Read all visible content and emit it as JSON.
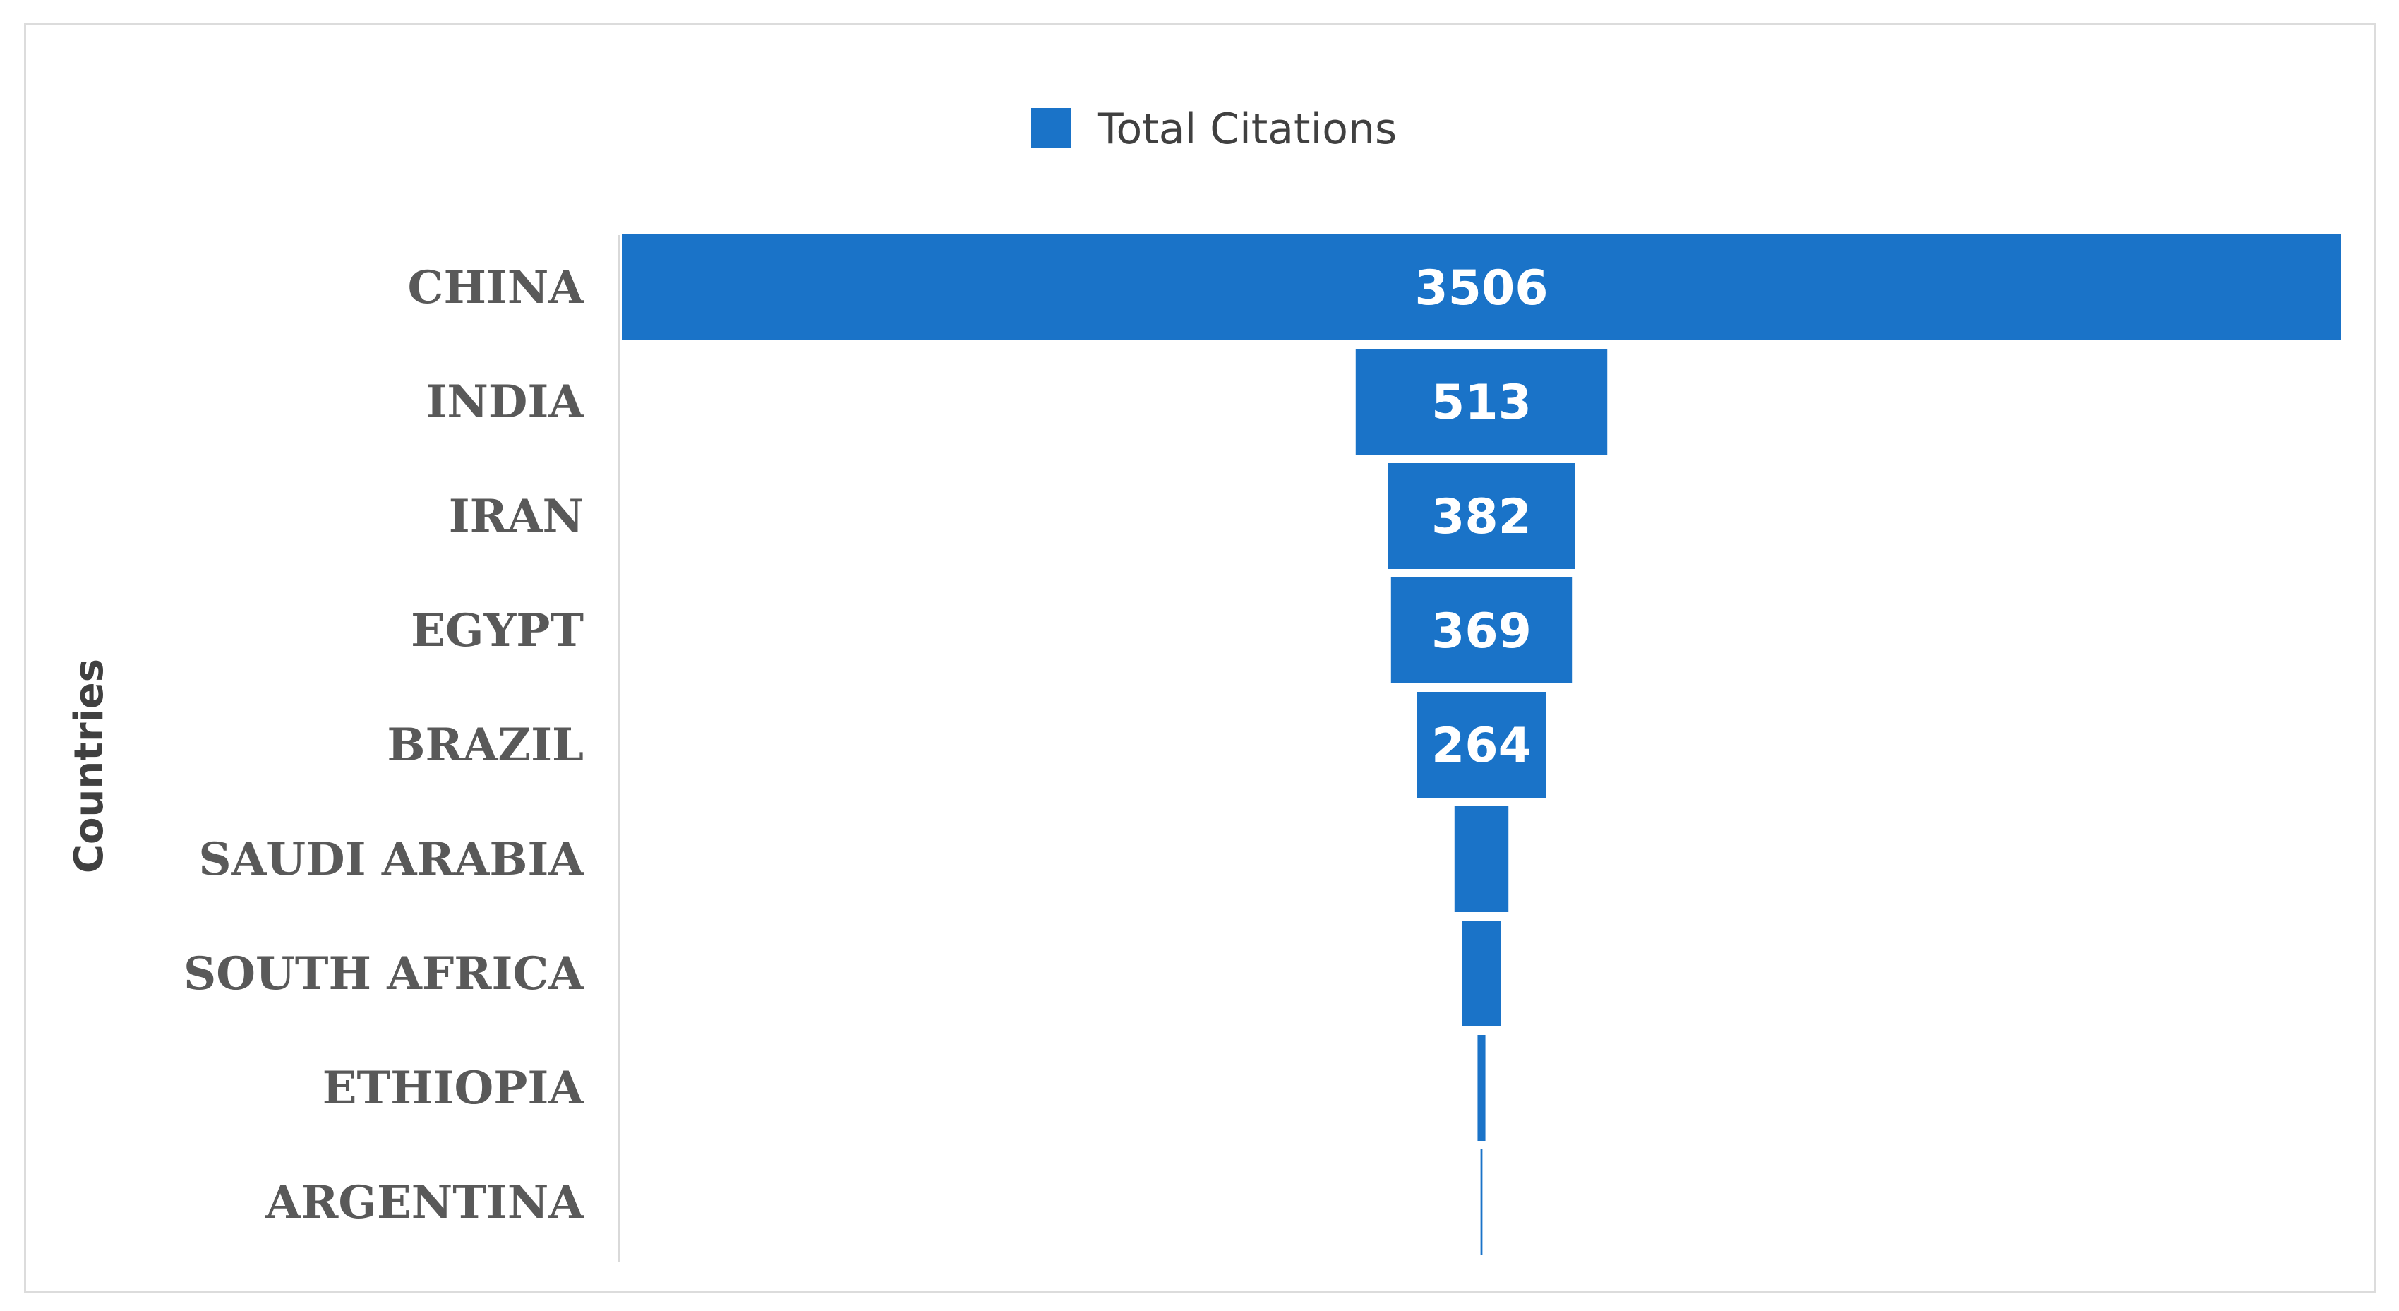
{
  "chart_data": {
    "type": "bar",
    "orientation": "horizontal-funnel",
    "categories": [
      "CHINA",
      "INDIA",
      "IRAN",
      "EGYPT",
      "BRAZIL",
      "SAUDI ARABIA",
      "SOUTH AFRICA",
      "ETHIOPIA",
      "ARGENTINA"
    ],
    "series": [
      {
        "name": "Total Citations",
        "values": [
          3506,
          513,
          382,
          369,
          264,
          110,
          80,
          16,
          4
        ],
        "data_labels": [
          "3506",
          "513",
          "382",
          "369",
          "264",
          "",
          "",
          "",
          ""
        ]
      }
    ],
    "ylabel": "Countries",
    "legend": "top-center",
    "grid": false,
    "bar_color": "#1a73c8"
  }
}
